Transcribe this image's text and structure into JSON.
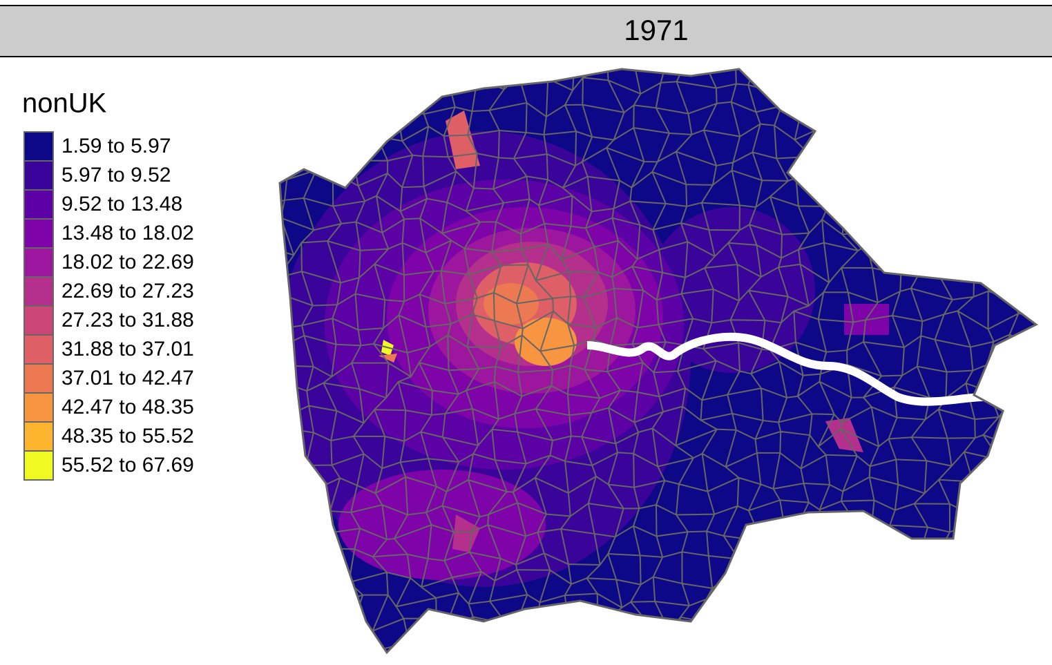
{
  "panel_title": "1971",
  "legend": {
    "title": "nonUK",
    "items": [
      {
        "label": "1.59 to 5.97",
        "color": "#0d0887"
      },
      {
        "label": "5.97 to 9.52",
        "color": "#3a049a"
      },
      {
        "label": "9.52 to 13.48",
        "color": "#5c01a6"
      },
      {
        "label": "13.48 to 18.02",
        "color": "#7e03a8"
      },
      {
        "label": "18.02 to 22.69",
        "color": "#9c179e"
      },
      {
        "label": "22.69 to 27.23",
        "color": "#b52f8c"
      },
      {
        "label": "27.23 to 31.88",
        "color": "#cc4778"
      },
      {
        "label": "31.88 to 37.01",
        "color": "#de5f65"
      },
      {
        "label": "37.01 to 42.47",
        "color": "#ed7953"
      },
      {
        "label": "42.47 to 48.35",
        "color": "#f89540"
      },
      {
        "label": "48.35 to 55.52",
        "color": "#fdb42f"
      },
      {
        "label": "55.52 to 67.69",
        "color": "#f0f921"
      }
    ]
  }
}
